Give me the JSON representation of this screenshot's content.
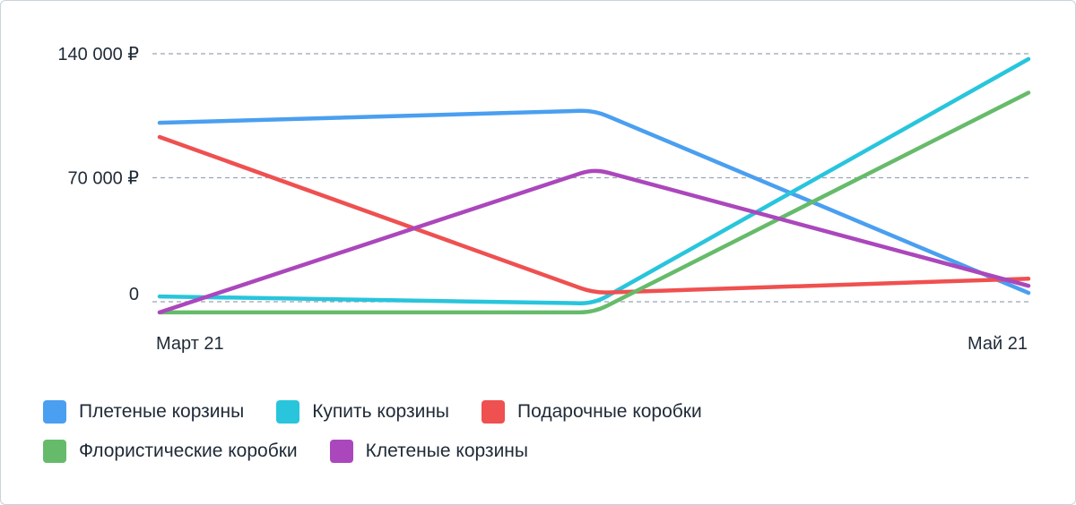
{
  "chart_data": {
    "type": "line",
    "categories": [
      "Март 21",
      "",
      "Май 21"
    ],
    "x_tick_labels": [
      "Март 21",
      "Май 21"
    ],
    "y_tick_labels": [
      "0",
      "70 000 ₽",
      "140 000 ₽"
    ],
    "y_ticks": [
      0,
      70000,
      140000
    ],
    "ylim": [
      -6000,
      140000
    ],
    "grid": "horizontal dashed",
    "legend_position": "bottom",
    "series": [
      {
        "name": "Плетеные корзины",
        "color": "#4a9ff0",
        "values": [
          101000,
          108000,
          5000
        ]
      },
      {
        "name": "Купить корзины",
        "color": "#28c5dc",
        "values": [
          3000,
          -1000,
          137000
        ]
      },
      {
        "name": "Подарочные коробки",
        "color": "#ef5050",
        "values": [
          93000,
          5000,
          13000
        ]
      },
      {
        "name": "Флористические коробки",
        "color": "#66bb6a",
        "values": [
          -6000,
          -6000,
          118000
        ]
      },
      {
        "name": "Клетеные корзины",
        "color": "#ab47bc",
        "values": [
          -6000,
          75000,
          9000
        ]
      }
    ]
  }
}
